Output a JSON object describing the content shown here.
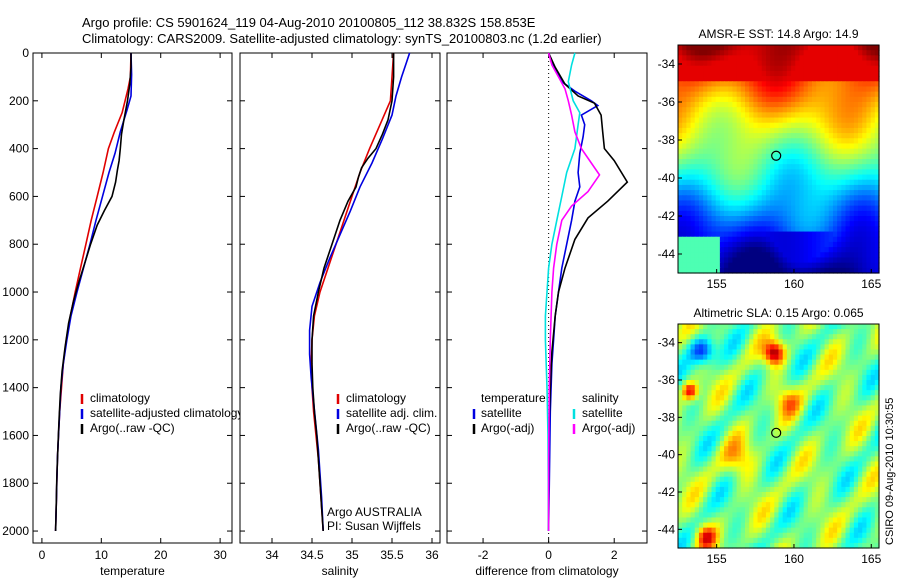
{
  "header": {
    "line1": "Argo profile: CS 5901624_119 04-Aug-2010 20100805_112 38.832S 158.853E",
    "line2": "Climatology: CARS2009. Satellite-adjusted climatology: synTS_20100803.nc (1.2d earlier)"
  },
  "credit": "CSIRO 09-Aug-2010 10:30:55",
  "chart_data": [
    {
      "type": "line",
      "id": "temperature",
      "xlabel": "temperature",
      "ylabel": "",
      "xlim": [
        -1.5,
        32
      ],
      "ylim": [
        2050,
        0
      ],
      "xticks": [
        0,
        10,
        20,
        30
      ],
      "yticks": [
        0,
        200,
        400,
        600,
        800,
        1000,
        1200,
        1400,
        1600,
        1800,
        2000
      ],
      "legend": [
        "climatology",
        "satellite-adjusted climatology",
        "Argo(..raw -QC)"
      ],
      "series": [
        {
          "name": "climatology",
          "color": "#e00000",
          "points": [
            [
              15,
              0
            ],
            [
              14.9,
              100
            ],
            [
              14.5,
              150
            ],
            [
              13.5,
              250
            ],
            [
              12.2,
              330
            ],
            [
              11.2,
              400
            ],
            [
              10.3,
              500
            ],
            [
              9.3,
              600
            ],
            [
              8.3,
              700
            ],
            [
              7.4,
              800
            ],
            [
              6.5,
              900
            ],
            [
              5.6,
              1000
            ],
            [
              4.8,
              1100
            ],
            [
              4.1,
              1200
            ],
            [
              3.6,
              1300
            ],
            [
              3.3,
              1400
            ],
            [
              3.0,
              1500
            ],
            [
              2.8,
              1600
            ],
            [
              2.6,
              1700
            ],
            [
              2.5,
              1800
            ],
            [
              2.4,
              1900
            ],
            [
              2.3,
              2000
            ]
          ]
        },
        {
          "name": "satellite-adjusted climatology",
          "color": "#0000e0",
          "points": [
            [
              15,
              0
            ],
            [
              15.1,
              90
            ],
            [
              15.0,
              180
            ],
            [
              14.3,
              240
            ],
            [
              13.2,
              330
            ],
            [
              12.3,
              420
            ],
            [
              11.3,
              500
            ],
            [
              10.2,
              600
            ],
            [
              9.1,
              700
            ],
            [
              8.1,
              800
            ],
            [
              7.0,
              900
            ],
            [
              5.9,
              1000
            ],
            [
              4.9,
              1100
            ],
            [
              4.2,
              1200
            ],
            [
              3.6,
              1300
            ],
            [
              3.2,
              1400
            ],
            [
              3.0,
              1500
            ],
            [
              2.8,
              1600
            ],
            [
              2.6,
              1700
            ],
            [
              2.5,
              1800
            ],
            [
              2.4,
              1900
            ],
            [
              2.3,
              2000
            ]
          ]
        },
        {
          "name": "Argo(..raw -QC)",
          "color": "#000000",
          "points": [
            [
              15,
              0
            ],
            [
              15,
              60
            ],
            [
              14.8,
              130
            ],
            [
              14.4,
              200
            ],
            [
              13.8,
              280
            ],
            [
              13.4,
              340
            ],
            [
              13.2,
              400
            ],
            [
              13.0,
              450
            ],
            [
              12.7,
              490
            ],
            [
              12.4,
              540
            ],
            [
              11.8,
              600
            ],
            [
              10.5,
              660
            ],
            [
              9.3,
              720
            ],
            [
              8.2,
              800
            ],
            [
              7.2,
              880
            ],
            [
              6.2,
              960
            ],
            [
              5.3,
              1040
            ],
            [
              4.5,
              1130
            ],
            [
              3.9,
              1230
            ],
            [
              3.4,
              1330
            ],
            [
              3.1,
              1430
            ],
            [
              2.9,
              1530
            ],
            [
              2.7,
              1650
            ],
            [
              2.5,
              1780
            ],
            [
              2.4,
              1900
            ],
            [
              2.3,
              2000
            ]
          ]
        }
      ]
    },
    {
      "type": "line",
      "id": "salinity",
      "xlabel": "salinity",
      "ylabel": "",
      "xlim": [
        33.6,
        36.1
      ],
      "ylim": [
        2050,
        0
      ],
      "xticks": [
        34,
        34.5,
        35,
        35.5,
        36
      ],
      "yticks": [
        0,
        200,
        400,
        600,
        800,
        1000,
        1200,
        1400,
        1600,
        1800,
        2000
      ],
      "legend": [
        "climatology",
        "satellite adj. clim.",
        "Argo(..raw -QC)"
      ],
      "annotation": [
        "Argo AUSTRALIA",
        "PI: Susan Wijffels"
      ],
      "series": [
        {
          "name": "climatology",
          "color": "#e00000",
          "points": [
            [
              35.52,
              0
            ],
            [
              35.5,
              100
            ],
            [
              35.48,
              200
            ],
            [
              35.35,
              300
            ],
            [
              35.22,
              400
            ],
            [
              35.1,
              500
            ],
            [
              35.0,
              600
            ],
            [
              34.9,
              700
            ],
            [
              34.8,
              800
            ],
            [
              34.7,
              900
            ],
            [
              34.6,
              1000
            ],
            [
              34.53,
              1100
            ],
            [
              34.5,
              1200
            ],
            [
              34.49,
              1300
            ],
            [
              34.5,
              1400
            ],
            [
              34.52,
              1500
            ],
            [
              34.55,
              1600
            ],
            [
              34.58,
              1700
            ],
            [
              34.6,
              1800
            ],
            [
              34.62,
              1900
            ],
            [
              34.64,
              2000
            ]
          ]
        },
        {
          "name": "satellite adj. clim.",
          "color": "#0000e0",
          "points": [
            [
              35.72,
              0
            ],
            [
              35.68,
              40
            ],
            [
              35.62,
              100
            ],
            [
              35.55,
              180
            ],
            [
              35.5,
              260
            ],
            [
              35.38,
              360
            ],
            [
              35.25,
              460
            ],
            [
              35.1,
              560
            ],
            [
              34.98,
              660
            ],
            [
              34.85,
              760
            ],
            [
              34.72,
              860
            ],
            [
              34.6,
              960
            ],
            [
              34.5,
              1060
            ],
            [
              34.47,
              1160
            ],
            [
              34.47,
              1260
            ],
            [
              34.49,
              1360
            ],
            [
              34.52,
              1460
            ],
            [
              34.55,
              1560
            ],
            [
              34.58,
              1660
            ],
            [
              34.6,
              1760
            ],
            [
              34.62,
              1860
            ],
            [
              34.64,
              2000
            ]
          ]
        },
        {
          "name": "Argo(..raw -QC)",
          "color": "#000000",
          "points": [
            [
              35.52,
              0
            ],
            [
              35.52,
              100
            ],
            [
              35.5,
              200
            ],
            [
              35.45,
              280
            ],
            [
              35.38,
              340
            ],
            [
              35.3,
              400
            ],
            [
              35.2,
              440
            ],
            [
              35.12,
              480
            ],
            [
              35.08,
              520
            ],
            [
              35.05,
              560
            ],
            [
              34.95,
              620
            ],
            [
              34.85,
              700
            ],
            [
              34.75,
              800
            ],
            [
              34.65,
              900
            ],
            [
              34.58,
              1000
            ],
            [
              34.52,
              1100
            ],
            [
              34.5,
              1200
            ],
            [
              34.5,
              1300
            ],
            [
              34.51,
              1400
            ],
            [
              34.53,
              1500
            ],
            [
              34.56,
              1600
            ],
            [
              34.58,
              1700
            ],
            [
              34.6,
              1800
            ],
            [
              34.62,
              1900
            ],
            [
              34.64,
              2000
            ]
          ]
        }
      ]
    },
    {
      "type": "line",
      "id": "difference",
      "xlabel": "difference from climatology",
      "ylabel": "",
      "xlim": [
        -3.1,
        3.0
      ],
      "ylim": [
        2050,
        0
      ],
      "xticks": [
        -2,
        0,
        2
      ],
      "yticks": [
        0,
        200,
        400,
        600,
        800,
        1000,
        1200,
        1400,
        1600,
        1800,
        2000
      ],
      "legend_groups": [
        {
          "header": "temperature",
          "items": [
            "satellite",
            "Argo(-adj)"
          ]
        },
        {
          "header": "salinity",
          "items": [
            "satellite",
            "Argo(-adj)"
          ]
        }
      ],
      "series": [
        {
          "name": "temperature satellite",
          "color": "#0000e0",
          "points": [
            [
              0.0,
              0
            ],
            [
              0.15,
              50
            ],
            [
              0.4,
              120
            ],
            [
              0.8,
              160
            ],
            [
              1.3,
              200
            ],
            [
              1.5,
              220
            ],
            [
              1.0,
              260
            ],
            [
              1.1,
              300
            ],
            [
              1.05,
              350
            ],
            [
              0.95,
              420
            ],
            [
              0.9,
              500
            ],
            [
              0.95,
              560
            ],
            [
              0.8,
              620
            ],
            [
              0.7,
              700
            ],
            [
              0.55,
              800
            ],
            [
              0.4,
              900
            ],
            [
              0.3,
              1000
            ],
            [
              0.2,
              1100
            ],
            [
              0.15,
              1200
            ],
            [
              0.1,
              1300
            ],
            [
              0.05,
              1500
            ],
            [
              0.02,
              1800
            ],
            [
              0.0,
              2000
            ]
          ]
        },
        {
          "name": "temperature Argo(-adj)",
          "color": "#000000",
          "points": [
            [
              0.0,
              0
            ],
            [
              0.2,
              60
            ],
            [
              0.5,
              130
            ],
            [
              0.9,
              180
            ],
            [
              1.4,
              210
            ],
            [
              1.6,
              260
            ],
            [
              1.65,
              330
            ],
            [
              1.7,
              400
            ],
            [
              2.0,
              450
            ],
            [
              2.4,
              540
            ],
            [
              1.8,
              620
            ],
            [
              1.2,
              690
            ],
            [
              0.8,
              780
            ],
            [
              0.5,
              900
            ],
            [
              0.3,
              1000
            ],
            [
              0.2,
              1100
            ],
            [
              0.1,
              1250
            ],
            [
              0.05,
              1400
            ],
            [
              0.0,
              1600
            ],
            [
              0.0,
              1800
            ],
            [
              0.0,
              2000
            ]
          ]
        },
        {
          "name": "salinity satellite",
          "color": "#00e0e0",
          "points": [
            [
              0.8,
              0
            ],
            [
              0.7,
              50
            ],
            [
              0.6,
              120
            ],
            [
              0.75,
              200
            ],
            [
              0.95,
              250
            ],
            [
              0.9,
              300
            ],
            [
              0.8,
              400
            ],
            [
              0.55,
              500
            ],
            [
              0.4,
              600
            ],
            [
              0.25,
              700
            ],
            [
              0.1,
              800
            ],
            [
              0.0,
              900
            ],
            [
              -0.05,
              1000
            ],
            [
              -0.1,
              1100
            ],
            [
              -0.1,
              1200
            ],
            [
              -0.05,
              1400
            ],
            [
              -0.02,
              1600
            ],
            [
              0.0,
              2000
            ]
          ]
        },
        {
          "name": "salinity Argo(-adj)",
          "color": "#ff00ff",
          "points": [
            [
              0.0,
              0
            ],
            [
              0.1,
              50
            ],
            [
              0.3,
              100
            ],
            [
              0.5,
              150
            ],
            [
              0.6,
              200
            ],
            [
              0.7,
              260
            ],
            [
              0.8,
              330
            ],
            [
              1.0,
              400
            ],
            [
              1.3,
              460
            ],
            [
              1.55,
              510
            ],
            [
              1.2,
              580
            ],
            [
              0.7,
              640
            ],
            [
              0.4,
              700
            ],
            [
              0.25,
              800
            ],
            [
              0.15,
              900
            ],
            [
              0.1,
              1000
            ],
            [
              0.05,
              1200
            ],
            [
              0.02,
              1400
            ],
            [
              0.0,
              1700
            ],
            [
              0.0,
              2000
            ]
          ]
        }
      ]
    },
    {
      "type": "heatmap",
      "id": "sst",
      "title": "AMSR-E SST: 14.8 Argo: 14.9",
      "xlim": [
        152.5,
        165.5
      ],
      "ylim": [
        -45,
        -33
      ],
      "xticks": [
        155,
        160,
        165
      ],
      "yticks": [
        -34,
        -36,
        -38,
        -40,
        -42,
        -44
      ],
      "marker": [
        158.85,
        -38.83
      ]
    },
    {
      "type": "heatmap",
      "id": "sla",
      "title": "Altimetric SLA: 0.15 Argo: 0.065",
      "xlim": [
        152.5,
        165.5
      ],
      "ylim": [
        -45,
        -33
      ],
      "xticks": [
        155,
        160,
        165
      ],
      "yticks": [
        -34,
        -36,
        -38,
        -40,
        -42,
        -44
      ],
      "marker": [
        158.85,
        -38.83
      ]
    }
  ]
}
